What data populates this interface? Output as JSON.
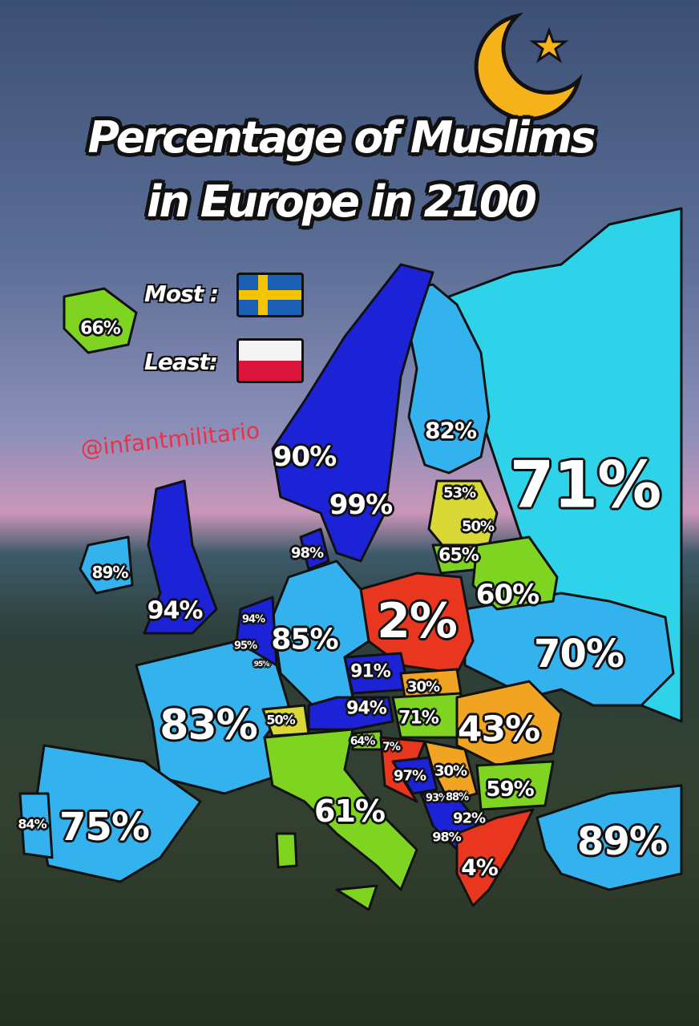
{
  "title": {
    "line1": "Percentage of Muslims",
    "line2": "in Europe in 2100"
  },
  "legend": {
    "most_label": "Most :",
    "least_label": "Least:",
    "most_flag": "sweden-flag",
    "least_flag": "poland-flag"
  },
  "watermark": "@infantmilitario",
  "icons": {
    "crescent": "crescent-moon-star-icon"
  },
  "colors": {
    "dark_blue": "#1c22d6",
    "light_blue": "#34b2ee",
    "cyan": "#2ed3ea",
    "green": "#7fd321",
    "yellow": "#d9d836",
    "orange": "#f0a422",
    "red": "#e8361f"
  },
  "labels": [
    "66%",
    "90%",
    "99%",
    "82%",
    "53%",
    "50%",
    "65%",
    "71%",
    "98%",
    "89%",
    "94%",
    "94%",
    "95%",
    "95%",
    "85%",
    "2%",
    "60%",
    "70%",
    "91%",
    "30%",
    "83%",
    "50%",
    "94%",
    "71%",
    "43%",
    "64%",
    "7%",
    "97%",
    "30%",
    "59%",
    "93%",
    "88%",
    "92%",
    "98%",
    "61%",
    "4%",
    "84%",
    "75%",
    "89%"
  ]
}
